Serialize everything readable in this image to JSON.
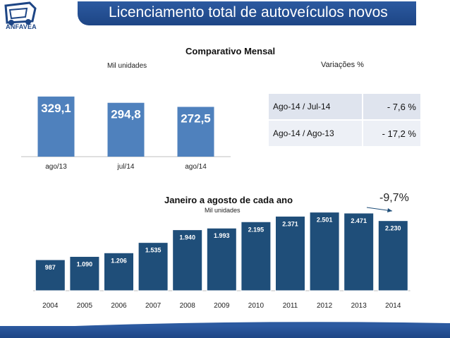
{
  "header": {
    "title": "Licenciamento total de autoveículos novos",
    "logo_text": "ANFAVEA"
  },
  "colors": {
    "brand": "#1d4585",
    "bar_light": "#4f81bd",
    "bar_dark": "#1f4e79"
  },
  "chart_data": [
    {
      "type": "bar",
      "title": "Comparativo Mensal",
      "ylabel": "Mil unidades",
      "categories": [
        "ago/13",
        "jul/14",
        "ago/14"
      ],
      "values": [
        329.1,
        294.8,
        272.5
      ],
      "labels": [
        "329,1",
        "294,8",
        "272,5"
      ],
      "ylim": [
        0,
        340
      ]
    },
    {
      "type": "bar",
      "title": "Janeiro a agosto de cada ano",
      "ylabel": "Mil unidades",
      "categories": [
        "2004",
        "2005",
        "2006",
        "2007",
        "2008",
        "2009",
        "2010",
        "2011",
        "2012",
        "2013",
        "2014"
      ],
      "values": [
        987,
        1090,
        1206,
        1535,
        1940,
        1993,
        2195,
        2371,
        2501,
        2471,
        2230
      ],
      "labels": [
        "987",
        "1.090",
        "1.206",
        "1.535",
        "1.940",
        "1.993",
        "2.195",
        "2.371",
        "2.501",
        "2.471",
        "2.230"
      ],
      "ylim": [
        0,
        2560
      ],
      "annotation": "-9,7%"
    }
  ],
  "variations": {
    "title": "Variações %",
    "rows": [
      {
        "label": "Ago-14 / Jul-14",
        "value": "- 7,6 %"
      },
      {
        "label": "Ago-14 / Ago-13",
        "value": "- 17,2 %"
      }
    ]
  }
}
